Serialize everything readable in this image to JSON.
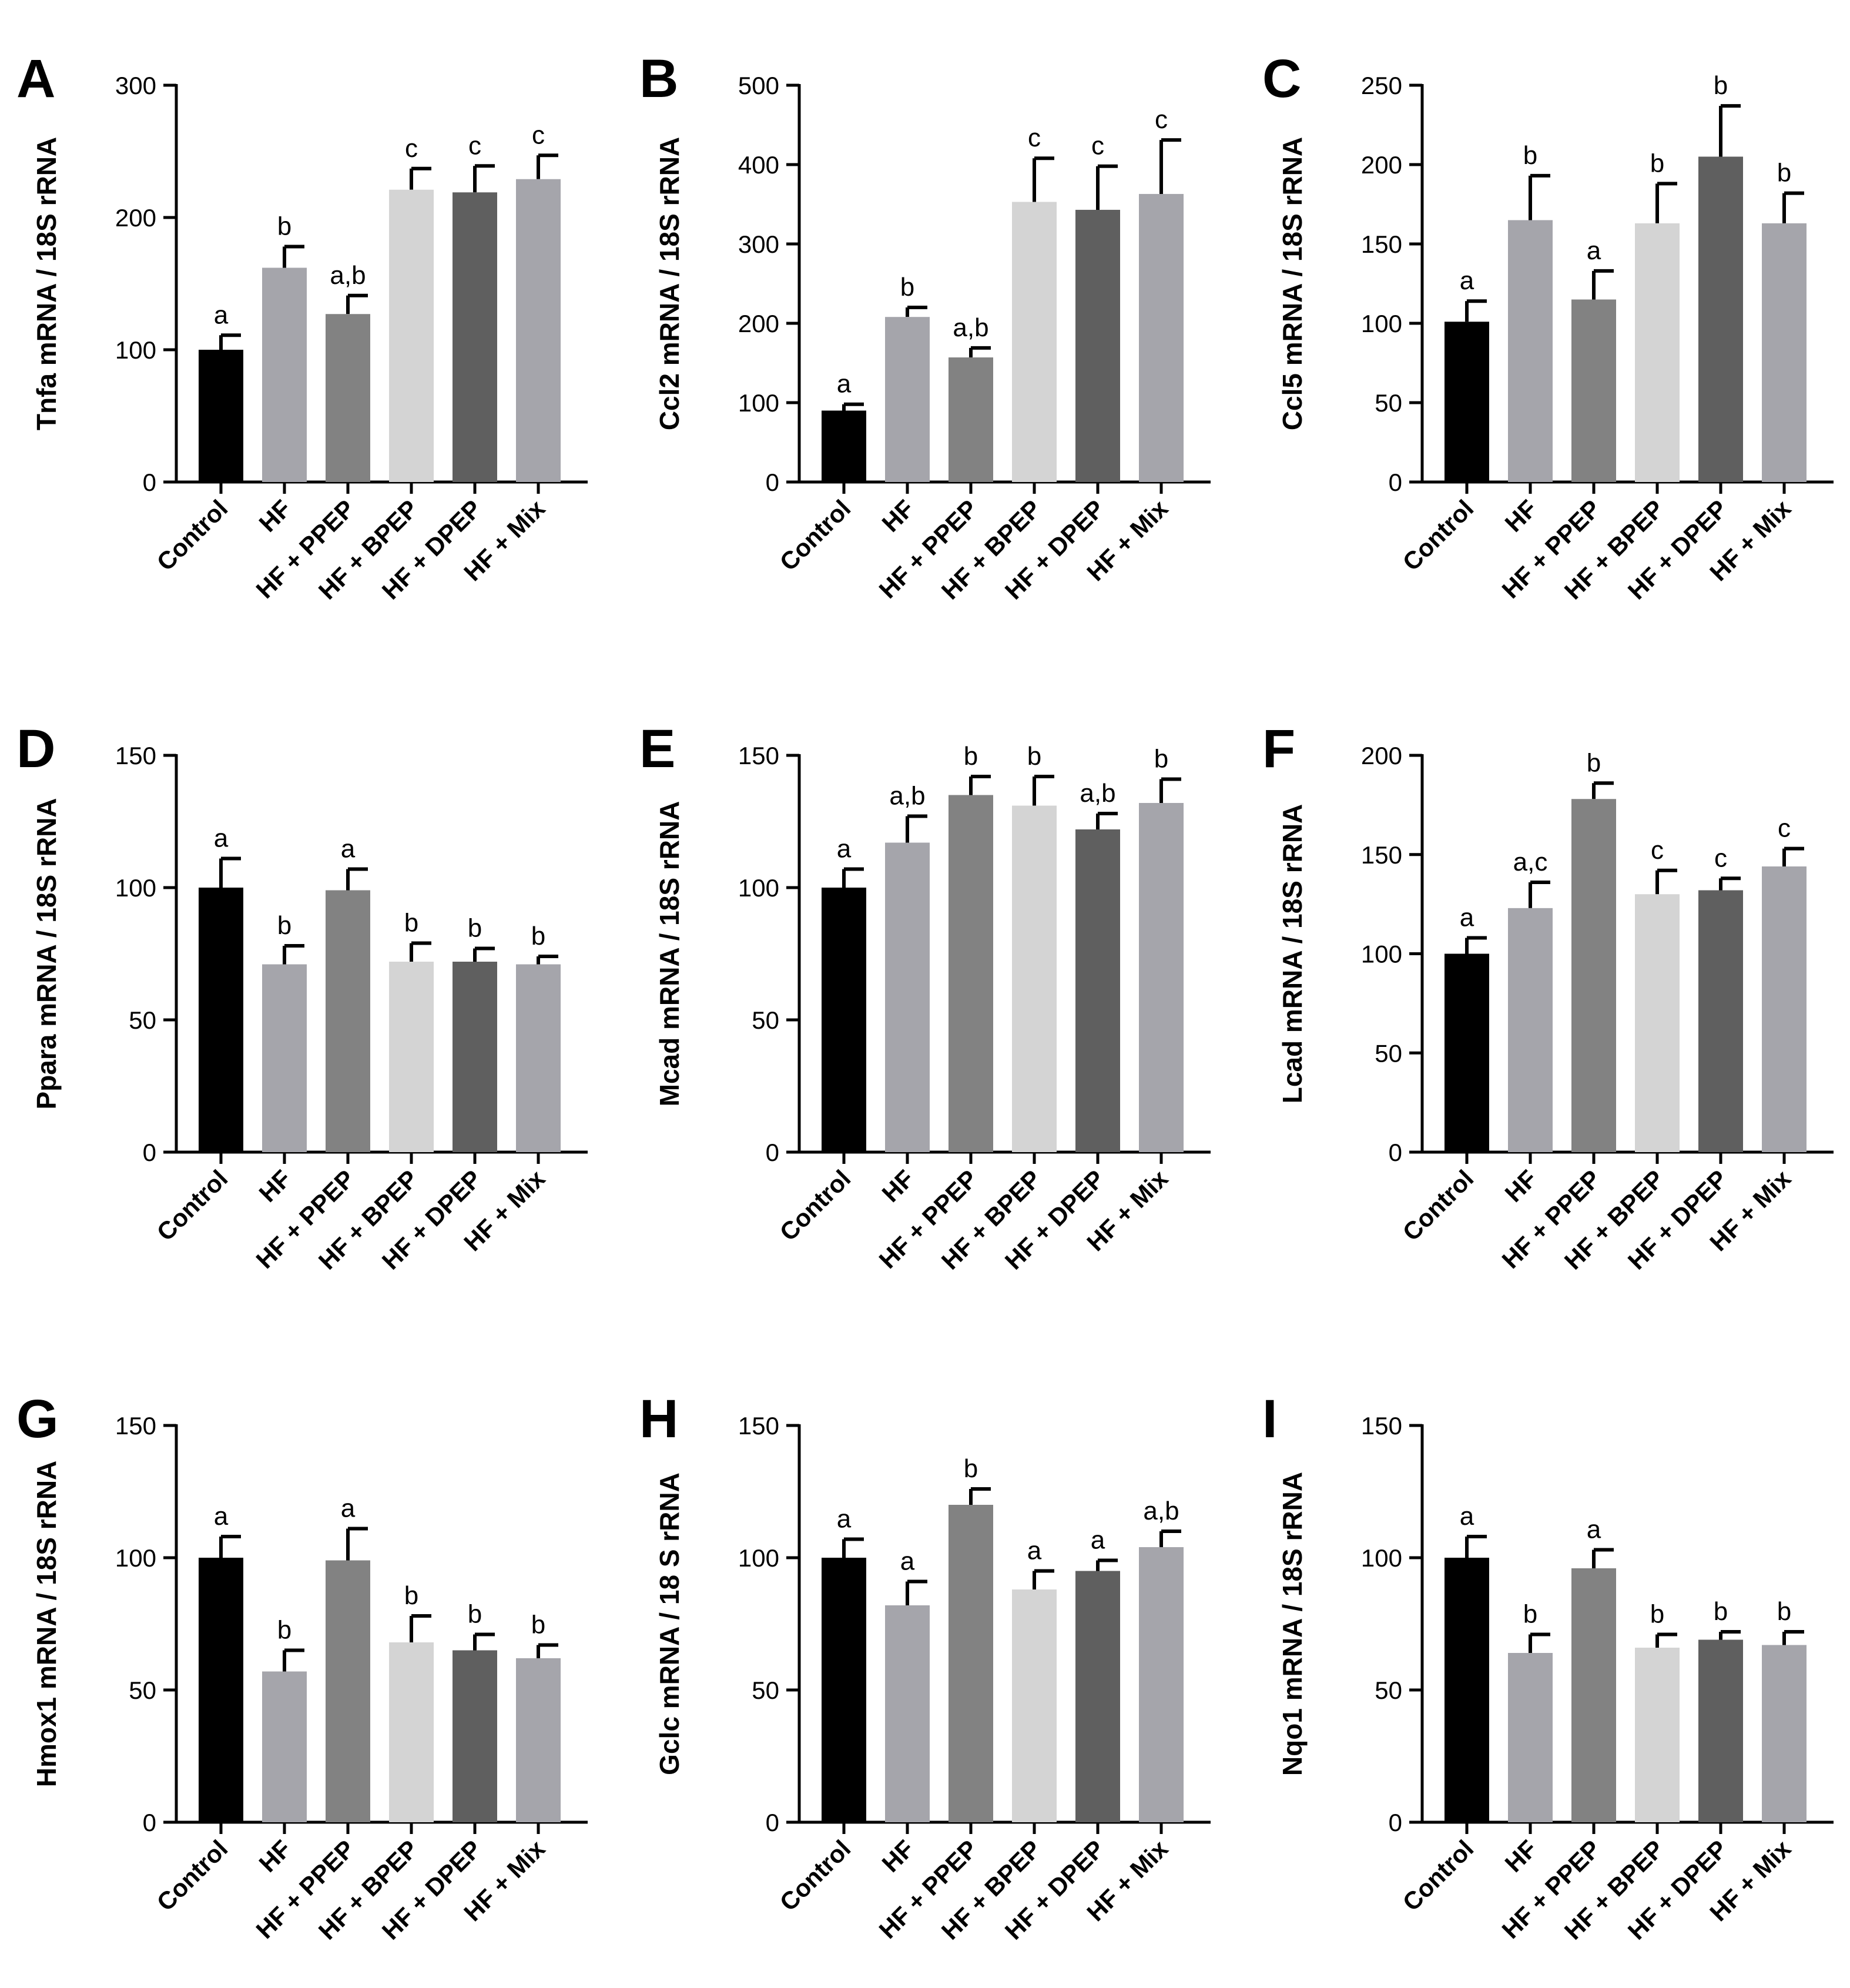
{
  "figure": {
    "categories": [
      "Control",
      "HF",
      "HF + PPEP",
      "HF + BPEP",
      "HF + DPEP",
      "HF + Mix"
    ],
    "bar_colors": [
      "#000000",
      "#a5a5ab",
      "#828282",
      "#d4d4d4",
      "#5f5f5f",
      "#a5a5ab"
    ]
  },
  "chart_data": [
    {
      "type": "bar",
      "panel": "A",
      "ylabel": "Tnfa mRNA / 18S rRNA",
      "ylim": [
        0,
        300
      ],
      "yticks": [
        0,
        100,
        200,
        300
      ],
      "categories": [
        "Control",
        "HF",
        "HF + PPEP",
        "HF + BPEP",
        "HF + DPEP",
        "HF + Mix"
      ],
      "values": [
        100,
        162,
        127,
        221,
        219,
        229
      ],
      "errors": [
        11,
        16,
        14,
        16,
        20,
        18
      ],
      "labels": [
        "a",
        "b",
        "a,b",
        "c",
        "c",
        "c"
      ]
    },
    {
      "type": "bar",
      "panel": "B",
      "ylabel": "Ccl2 mRNA / 18S rRNA",
      "ylim": [
        0,
        500
      ],
      "yticks": [
        0,
        100,
        200,
        300,
        400,
        500
      ],
      "categories": [
        "Control",
        "HF",
        "HF + PPEP",
        "HF + BPEP",
        "HF + DPEP",
        "HF + Mix"
      ],
      "values": [
        90,
        208,
        157,
        353,
        343,
        363
      ],
      "errors": [
        8,
        12,
        12,
        55,
        55,
        68
      ],
      "labels": [
        "a",
        "b",
        "a,b",
        "c",
        "c",
        "c"
      ]
    },
    {
      "type": "bar",
      "panel": "C",
      "ylabel": "Ccl5 mRNA / 18S rRNA",
      "ylim": [
        0,
        250
      ],
      "yticks": [
        0,
        50,
        100,
        150,
        200,
        250
      ],
      "categories": [
        "Control",
        "HF",
        "HF + PPEP",
        "HF + BPEP",
        "HF + DPEP",
        "HF + Mix"
      ],
      "values": [
        101,
        165,
        115,
        163,
        205,
        163
      ],
      "errors": [
        13,
        28,
        18,
        25,
        32,
        19
      ],
      "labels": [
        "a",
        "b",
        "a",
        "b",
        "b",
        "b"
      ]
    },
    {
      "type": "bar",
      "panel": "D",
      "ylabel": "Ppara mRNA / 18S rRNA",
      "ylim": [
        0,
        150
      ],
      "yticks": [
        0,
        50,
        100,
        150
      ],
      "categories": [
        "Control",
        "HF",
        "HF + PPEP",
        "HF + BPEP",
        "HF + DPEP",
        "HF + Mix"
      ],
      "values": [
        100,
        71,
        99,
        72,
        72,
        71
      ],
      "errors": [
        11,
        7,
        8,
        7,
        5,
        3
      ],
      "labels": [
        "a",
        "b",
        "a",
        "b",
        "b",
        "b"
      ]
    },
    {
      "type": "bar",
      "panel": "E",
      "ylabel": "Mcad mRNA / 18S rRNA",
      "ylim": [
        0,
        150
      ],
      "yticks": [
        0,
        50,
        100,
        150
      ],
      "categories": [
        "Control",
        "HF",
        "HF + PPEP",
        "HF + BPEP",
        "HF + DPEP",
        "HF + Mix"
      ],
      "values": [
        100,
        117,
        135,
        131,
        122,
        132
      ],
      "errors": [
        7,
        10,
        7,
        11,
        6,
        9
      ],
      "labels": [
        "a",
        "a,b",
        "b",
        "b",
        "a,b",
        "b"
      ]
    },
    {
      "type": "bar",
      "panel": "F",
      "ylabel": "Lcad mRNA / 18S rRNA",
      "ylim": [
        0,
        200
      ],
      "yticks": [
        0,
        50,
        100,
        150,
        200
      ],
      "categories": [
        "Control",
        "HF",
        "HF + PPEP",
        "HF + BPEP",
        "HF + DPEP",
        "HF + Mix"
      ],
      "values": [
        100,
        123,
        178,
        130,
        132,
        144
      ],
      "errors": [
        8,
        13,
        8,
        12,
        6,
        9
      ],
      "labels": [
        "a",
        "a,c",
        "b",
        "c",
        "c",
        "c"
      ]
    },
    {
      "type": "bar",
      "panel": "G",
      "ylabel": "Hmox1 mRNA / 18S rRNA",
      "ylim": [
        0,
        150
      ],
      "yticks": [
        0,
        50,
        100,
        150
      ],
      "categories": [
        "Control",
        "HF",
        "HF + PPEP",
        "HF + BPEP",
        "HF + DPEP",
        "HF + Mix"
      ],
      "values": [
        100,
        57,
        99,
        68,
        65,
        62
      ],
      "errors": [
        8,
        8,
        12,
        10,
        6,
        5
      ],
      "labels": [
        "a",
        "b",
        "a",
        "b",
        "b",
        "b"
      ]
    },
    {
      "type": "bar",
      "panel": "H",
      "ylabel": "Gclc mRNA / 18 S rRNA",
      "ylim": [
        0,
        150
      ],
      "yticks": [
        0,
        50,
        100,
        150
      ],
      "categories": [
        "Control",
        "HF",
        "HF + PPEP",
        "HF + BPEP",
        "HF + DPEP",
        "HF + Mix"
      ],
      "values": [
        100,
        82,
        120,
        88,
        95,
        104
      ],
      "errors": [
        7,
        9,
        6,
        7,
        4,
        6
      ],
      "labels": [
        "a",
        "a",
        "b",
        "a",
        "a",
        "a,b"
      ]
    },
    {
      "type": "bar",
      "panel": "I",
      "ylabel": "Nqo1 mRNA / 18S rRNA",
      "ylim": [
        0,
        150
      ],
      "yticks": [
        0,
        50,
        100,
        150
      ],
      "categories": [
        "Control",
        "HF",
        "HF + PPEP",
        "HF + BPEP",
        "HF + DPEP",
        "HF + Mix"
      ],
      "values": [
        100,
        64,
        96,
        66,
        69,
        67
      ],
      "errors": [
        8,
        7,
        7,
        5,
        3,
        5
      ],
      "labels": [
        "a",
        "b",
        "a",
        "b",
        "b",
        "b"
      ]
    }
  ]
}
